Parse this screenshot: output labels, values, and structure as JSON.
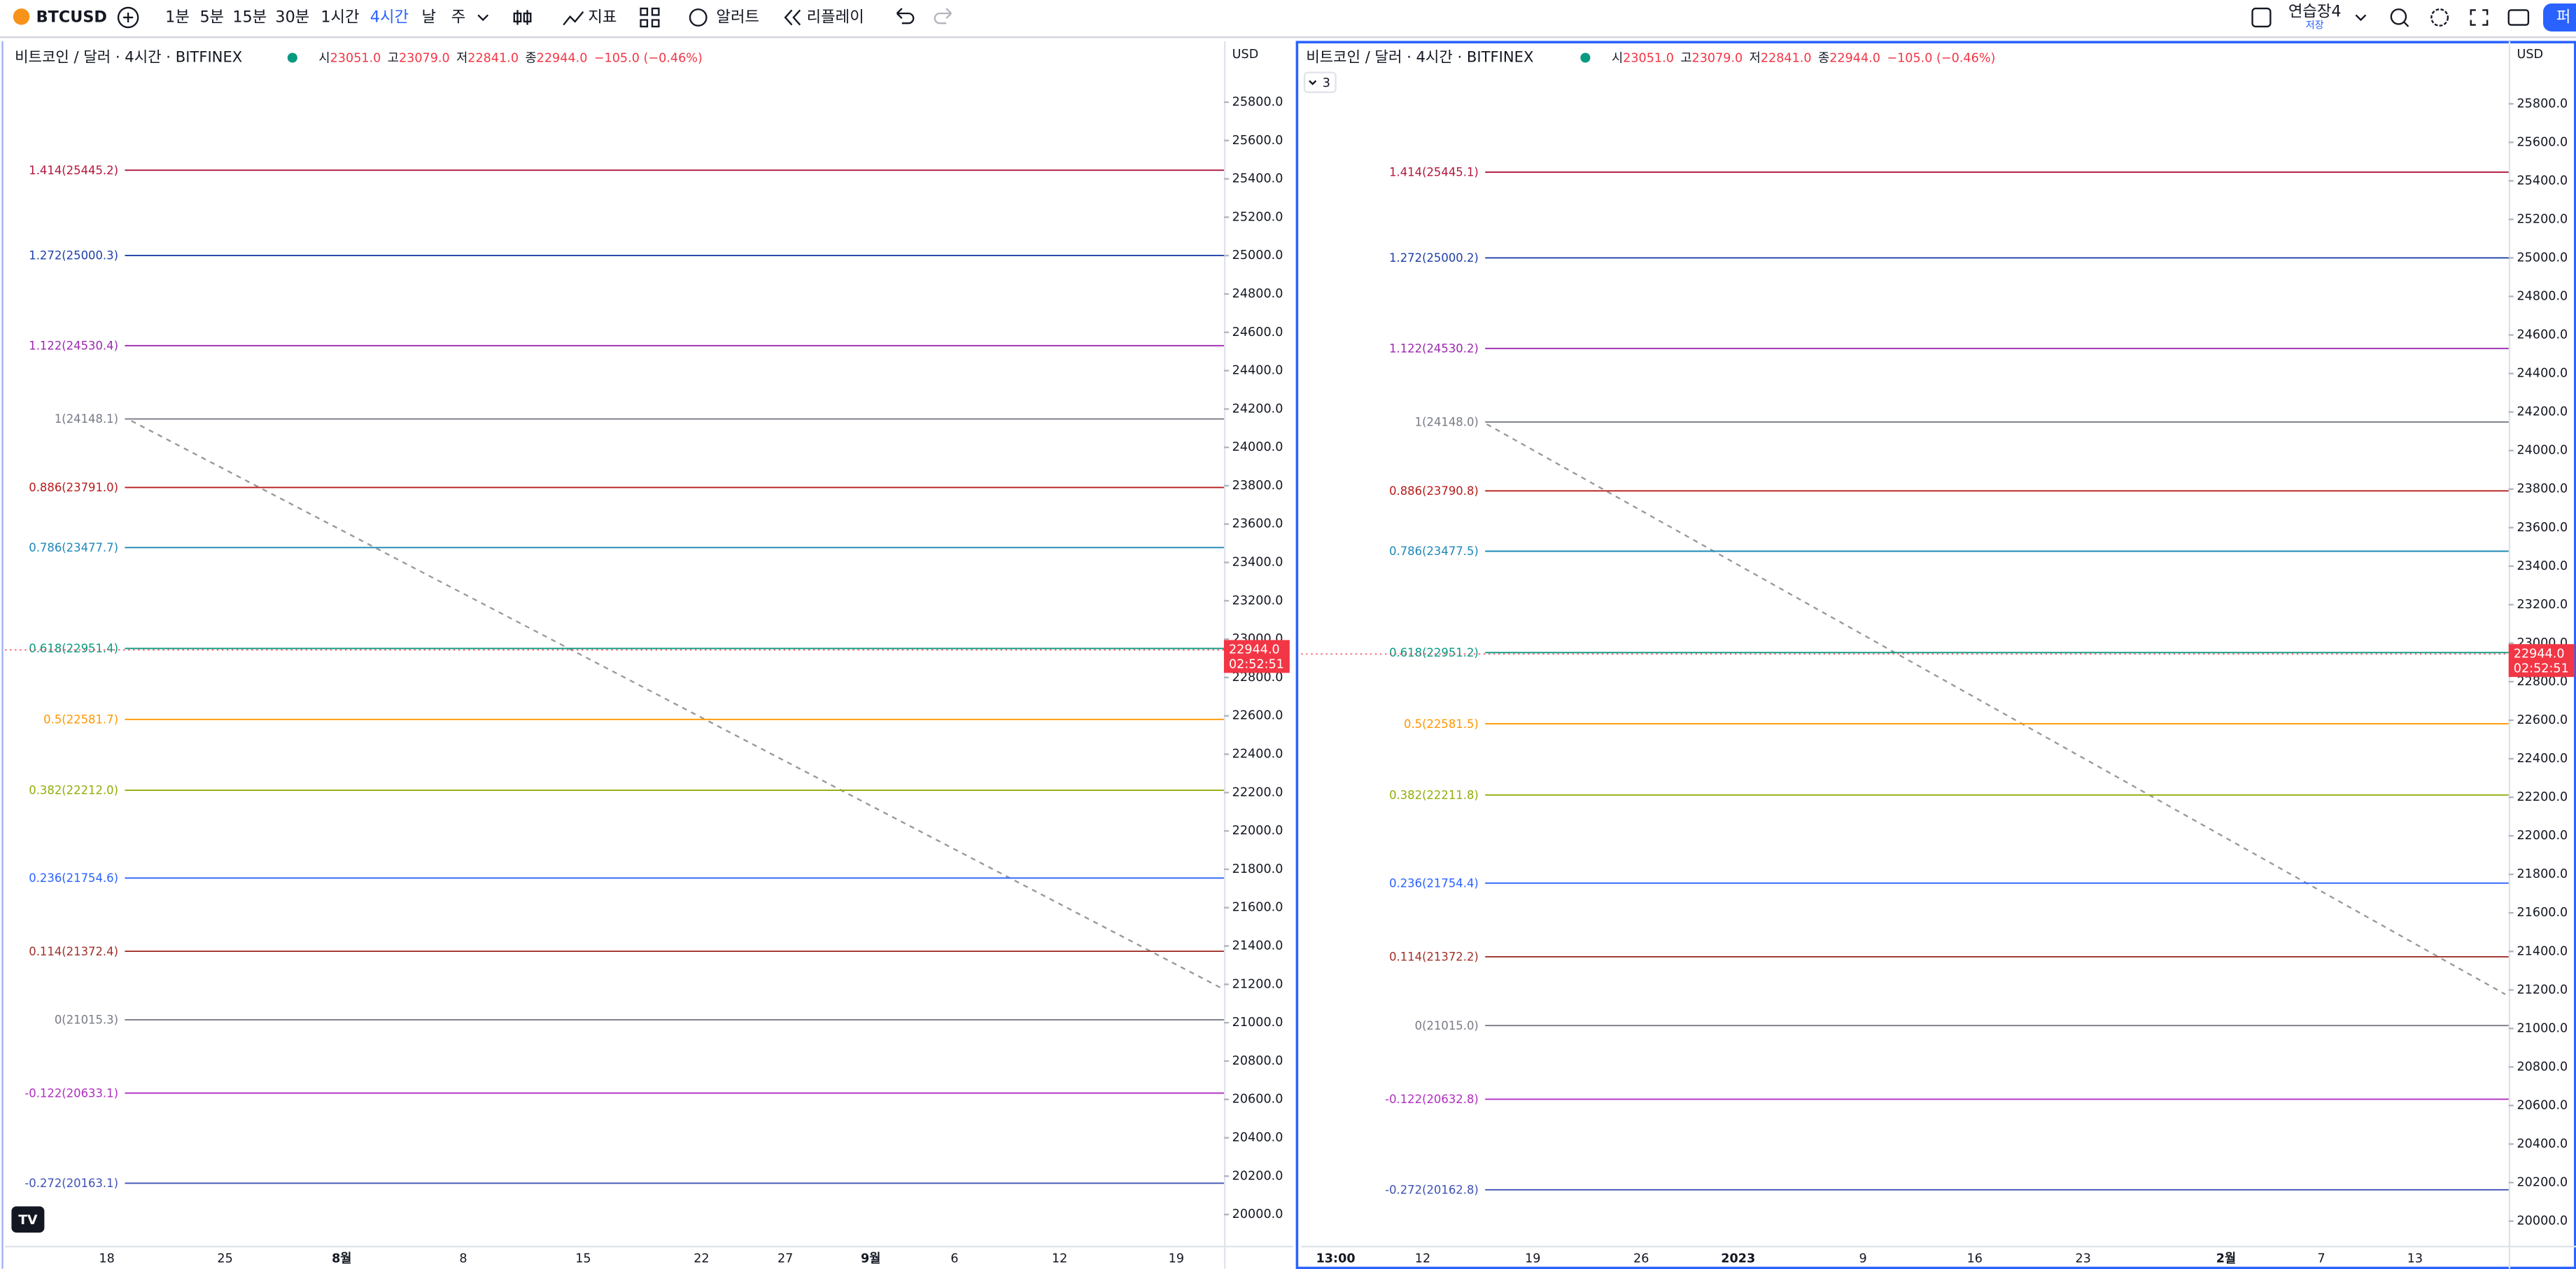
{
  "toolbar": {
    "symbol": "BTCUSD",
    "intervals": [
      "1분",
      "5분",
      "15분",
      "30분",
      "1시간",
      "4시간",
      "날",
      "주"
    ],
    "active": 5,
    "indicators": "지표",
    "alerts": "알러트",
    "replay": "리플레이",
    "layout": "연습장4",
    "save": "저장",
    "publish": "퍼"
  },
  "charts": [
    {
      "title": "비트코인 / 달러 · 4시간 · BITFINEX",
      "ohlc": [
        {
          "label": "시",
          "value": "23051.0"
        },
        {
          "label": "고",
          "value": "23079.0"
        },
        {
          "label": "저",
          "value": "22841.0"
        },
        {
          "label": "종",
          "value": "22944.0"
        }
      ],
      "change": "−105.0 (−0.46%)",
      "currency": "USD",
      "ylim": [
        19837,
        26143
      ],
      "yticks": [
        {
          "value": 20000,
          "label": "20000.0"
        },
        {
          "value": 20200,
          "label": "20200.0"
        },
        {
          "value": 20400,
          "label": "20400.0"
        },
        {
          "value": 20600,
          "label": "20600.0"
        },
        {
          "value": 20800,
          "label": "20800.0"
        },
        {
          "value": 21000,
          "label": "21000.0"
        },
        {
          "value": 21200,
          "label": "21200.0"
        },
        {
          "value": 21400,
          "label": "21400.0"
        },
        {
          "value": 21600,
          "label": "21600.0"
        },
        {
          "value": 21800,
          "label": "21800.0"
        },
        {
          "value": 22000,
          "label": "22000.0"
        },
        {
          "value": 22200,
          "label": "22200.0"
        },
        {
          "value": 22400,
          "label": "22400.0"
        },
        {
          "value": 22600,
          "label": "22600.0"
        },
        {
          "value": 22800,
          "label": "22800.0"
        },
        {
          "value": 23000,
          "label": "23000.0"
        },
        {
          "value": 23200,
          "label": "23200.0"
        },
        {
          "value": 23400,
          "label": "23400.0"
        },
        {
          "value": 23600,
          "label": "23600.0"
        },
        {
          "value": 23800,
          "label": "23800.0"
        },
        {
          "value": 24000,
          "label": "24000.0"
        },
        {
          "value": 24200,
          "label": "24200.0"
        },
        {
          "value": 24400,
          "label": "24400.0"
        },
        {
          "value": 24600,
          "label": "24600.0"
        },
        {
          "value": 24800,
          "label": "24800.0"
        },
        {
          "value": 25000,
          "label": "25000.0"
        },
        {
          "value": 25200,
          "label": "25200.0"
        },
        {
          "value": 25400,
          "label": "25400.0"
        },
        {
          "value": 25600,
          "label": "25600.0"
        },
        {
          "value": 25800,
          "label": "25800.0"
        }
      ],
      "fib": [
        {
          "label": "1.414(25445.2)",
          "price": 25445.2,
          "color": "#b2163c"
        },
        {
          "label": "1.272(25000.3)",
          "price": 25000.3,
          "color": "#1e3fa8"
        },
        {
          "label": "1.122(24530.4)",
          "price": 24530.4,
          "color": "#9c27b0"
        },
        {
          "label": "1(24148.1)",
          "price": 24148.1,
          "color": "#787b86"
        },
        {
          "label": "0.886(23791.0)",
          "price": 23791.0,
          "color": "#b71c1c"
        },
        {
          "label": "0.786(23477.7)",
          "price": 23477.7,
          "color": "#1e88b8"
        },
        {
          "label": "0.618(22951.4)",
          "price": 22951.4,
          "color": "#089981"
        },
        {
          "label": "0.5(22581.7)",
          "price": 22581.7,
          "color": "#ff9800"
        },
        {
          "label": "0.382(22212.0)",
          "price": 22212.0,
          "color": "#8fae0a"
        },
        {
          "label": "0.236(21754.6)",
          "price": 21754.6,
          "color": "#2962ff"
        },
        {
          "label": "0.114(21372.4)",
          "price": 21372.4,
          "color": "#a0302a"
        },
        {
          "label": "0(21015.3)",
          "price": 21015.3,
          "color": "#787b86"
        },
        {
          "label": "-0.122(20633.1)",
          "price": 20633.1,
          "color": "#b02fc0"
        },
        {
          "label": "-0.272(20163.1)",
          "price": 20163.1,
          "color": "#3f51b5"
        }
      ],
      "last_price": {
        "value": 22944.0,
        "label": "22944.0",
        "countdown": "02:52:51"
      },
      "xlabels": [
        "18",
        "25",
        "8월",
        "8",
        "15",
        "22",
        "27",
        "9월",
        "6",
        "12",
        "19"
      ]
    },
    {
      "title": "비트코인 / 달러 · 4시간 · BITFINEX",
      "badge": "3",
      "ohlc": [
        {
          "label": "시",
          "value": "23051.0"
        },
        {
          "label": "고",
          "value": "23079.0"
        },
        {
          "label": "저",
          "value": "22841.0"
        },
        {
          "label": "종",
          "value": "22944.0"
        }
      ],
      "change": "−105.0 (−0.46%)",
      "currency": "USD",
      "ylim": [
        19872,
        26150
      ],
      "yticks": [
        {
          "value": 20000,
          "label": "20000.0"
        },
        {
          "value": 20200,
          "label": "20200.0"
        },
        {
          "value": 20400,
          "label": "20400.0"
        },
        {
          "value": 20600,
          "label": "20600.0"
        },
        {
          "value": 20800,
          "label": "20800.0"
        },
        {
          "value": 21000,
          "label": "21000.0"
        },
        {
          "value": 21200,
          "label": "21200.0"
        },
        {
          "value": 21400,
          "label": "21400.0"
        },
        {
          "value": 21600,
          "label": "21600.0"
        },
        {
          "value": 21800,
          "label": "21800.0"
        },
        {
          "value": 22000,
          "label": "22000.0"
        },
        {
          "value": 22200,
          "label": "22200.0"
        },
        {
          "value": 22400,
          "label": "22400.0"
        },
        {
          "value": 22600,
          "label": "22600.0"
        },
        {
          "value": 22800,
          "label": "22800.0"
        },
        {
          "value": 23000,
          "label": "23000.0"
        },
        {
          "value": 23200,
          "label": "23200.0"
        },
        {
          "value": 23400,
          "label": "23400.0"
        },
        {
          "value": 23600,
          "label": "23600.0"
        },
        {
          "value": 23800,
          "label": "23800.0"
        },
        {
          "value": 24000,
          "label": "24000.0"
        },
        {
          "value": 24200,
          "label": "24200.0"
        },
        {
          "value": 24400,
          "label": "24400.0"
        },
        {
          "value": 24600,
          "label": "24600.0"
        },
        {
          "value": 24800,
          "label": "24800.0"
        },
        {
          "value": 25000,
          "label": "25000.0"
        },
        {
          "value": 25200,
          "label": "25200.0"
        },
        {
          "value": 25400,
          "label": "25400.0"
        },
        {
          "value": 25600,
          "label": "25600.0"
        },
        {
          "value": 25800,
          "label": "25800.0"
        }
      ],
      "fib": [
        {
          "label": "1.414(25445.1)",
          "price": 25445.1,
          "color": "#b2163c"
        },
        {
          "label": "1.272(25000.2)",
          "price": 25000.2,
          "color": "#1e3fa8"
        },
        {
          "label": "1.122(24530.2)",
          "price": 24530.2,
          "color": "#9c27b0"
        },
        {
          "label": "1(24148.0)",
          "price": 24148.0,
          "color": "#787b86"
        },
        {
          "label": "0.886(23790.8)",
          "price": 23790.8,
          "color": "#b71c1c"
        },
        {
          "label": "0.786(23477.5)",
          "price": 23477.5,
          "color": "#1e88b8"
        },
        {
          "label": "0.618(22951.2)",
          "price": 22951.2,
          "color": "#089981"
        },
        {
          "label": "0.5(22581.5)",
          "price": 22581.5,
          "color": "#ff9800"
        },
        {
          "label": "0.382(22211.8)",
          "price": 22211.8,
          "color": "#8fae0a"
        },
        {
          "label": "0.236(21754.4)",
          "price": 21754.4,
          "color": "#2962ff"
        },
        {
          "label": "0.114(21372.2)",
          "price": 21372.2,
          "color": "#a0302a"
        },
        {
          "label": "0(21015.0)",
          "price": 21015.0,
          "color": "#787b86"
        },
        {
          "label": "-0.122(20632.8)",
          "price": 20632.8,
          "color": "#b02fc0"
        },
        {
          "label": "-0.272(20162.8)",
          "price": 20162.8,
          "color": "#3f51b5"
        }
      ],
      "last_price": {
        "value": 22944.0,
        "label": "22944.0",
        "countdown": "02:52:51"
      },
      "xlabels": [
        "13:00",
        "12",
        "19",
        "26",
        "2023",
        "9",
        "16",
        "23",
        "2월",
        "7",
        "13"
      ]
    }
  ]
}
